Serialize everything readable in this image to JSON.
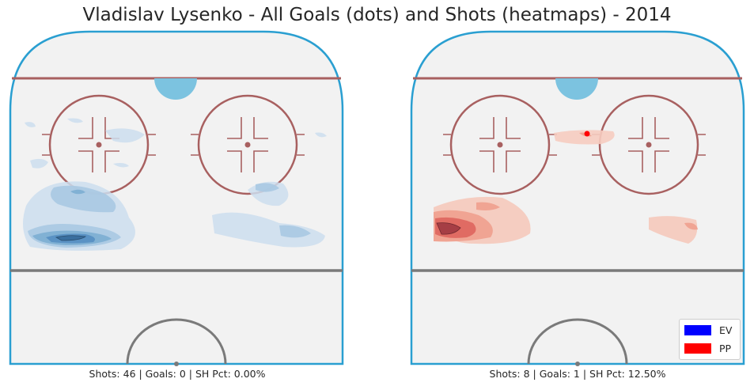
{
  "title": "Vladislav Lysenko - All Goals (dots) and Shots (heatmaps) - 2014",
  "chart_data": [
    {
      "type": "heatmap",
      "name": "EV",
      "color_scale": "#2f6fa8",
      "caption": "Shots: 46 | Goals: 0 | SH Pct: 0.00%",
      "shots": 46,
      "goals": 0,
      "sh_pct": "0.00%",
      "goal_dots": []
    },
    {
      "type": "heatmap",
      "name": "PP",
      "color_scale": "#d62f2f",
      "caption": "Shots: 8 | Goals: 1 | SH Pct: 12.50%",
      "shots": 8,
      "goals": 1,
      "sh_pct": "12.50%",
      "goal_dots": 1
    }
  ],
  "legend": {
    "items": [
      {
        "label": "EV",
        "color": "#0000ff"
      },
      {
        "label": "PP",
        "color": "#ff0000"
      }
    ]
  },
  "colors": {
    "rink_fill": "#f2f2f2",
    "boards": "#2a9fd1",
    "red_lines": "#a86060",
    "blue_line": "#7a7a7a",
    "crease": "#7cc3e0"
  }
}
